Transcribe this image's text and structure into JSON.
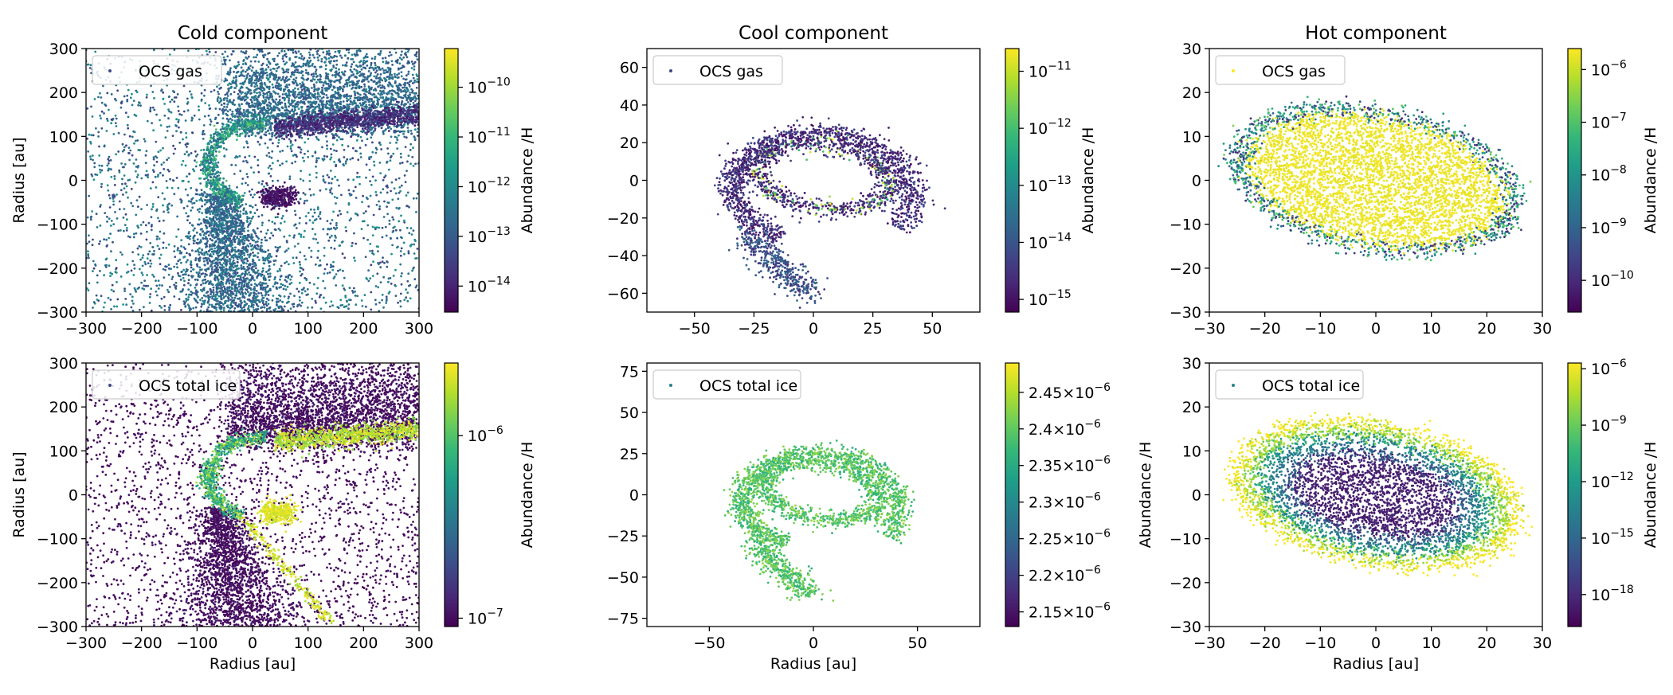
{
  "figure_description_free": true,
  "chart_data": [
    {
      "id": "cold_gas",
      "type": "scatter",
      "title": "Cold component",
      "legend": "OCS gas",
      "xlabel": "",
      "ylabel": "Radius [au]",
      "xlim": [
        -300,
        300
      ],
      "ylim": [
        -300,
        300
      ],
      "xticks": [
        -300,
        -200,
        -100,
        0,
        100,
        200,
        300
      ],
      "yticks": [
        -300,
        -200,
        -100,
        0,
        100,
        200,
        300
      ],
      "xtick_labels": [
        "−300",
        "−200",
        "−100",
        "0",
        "100",
        "200",
        "300"
      ],
      "ytick_labels": [
        "−300",
        "−200",
        "−100",
        "0",
        "100",
        "200",
        "300"
      ],
      "colorbar": {
        "label": "Abundance /H",
        "scale": "log",
        "range": [
          3e-15,
          6e-10
        ],
        "ticks": [
          {
            "value": 1e-10,
            "base": "10",
            "exp": "−10"
          },
          {
            "value": 1e-11,
            "base": "10",
            "exp": "−11"
          },
          {
            "value": 1e-12,
            "base": "10",
            "exp": "−12"
          },
          {
            "value": 1e-13,
            "base": "10",
            "exp": "−13"
          },
          {
            "value": 1e-14,
            "base": "10",
            "exp": "−14"
          }
        ]
      },
      "structure": "cold",
      "dominant_value": "low"
    },
    {
      "id": "cool_gas",
      "type": "scatter",
      "title": "Cool component",
      "legend": "OCS gas",
      "xlabel": "",
      "ylabel": "",
      "xlim": [
        -70,
        70
      ],
      "ylim": [
        -70,
        70
      ],
      "xticks": [
        -50,
        -25,
        0,
        25,
        50
      ],
      "yticks": [
        -60,
        -40,
        -20,
        0,
        20,
        40,
        60
      ],
      "xtick_labels": [
        "−50",
        "−25",
        "0",
        "25",
        "50"
      ],
      "ytick_labels": [
        "−60",
        "−40",
        "−20",
        "0",
        "20",
        "40",
        "60"
      ],
      "colorbar": {
        "label": "Abundance /H",
        "scale": "log",
        "range": [
          6e-16,
          2.5e-11
        ],
        "ticks": [
          {
            "value": 1e-11,
            "base": "10",
            "exp": "−11"
          },
          {
            "value": 1e-12,
            "base": "10",
            "exp": "−12"
          },
          {
            "value": 1e-13,
            "base": "10",
            "exp": "−13"
          },
          {
            "value": 1e-14,
            "base": "10",
            "exp": "−14"
          },
          {
            "value": 1e-15,
            "base": "10",
            "exp": "−15"
          }
        ]
      },
      "structure": "spiral",
      "dominant_value": "low"
    },
    {
      "id": "hot_gas",
      "type": "scatter",
      "title": "Hot component",
      "legend": "OCS gas",
      "xlabel": "",
      "ylabel": "",
      "xlim": [
        -30,
        30
      ],
      "ylim": [
        -30,
        30
      ],
      "xticks": [
        -30,
        -20,
        -10,
        0,
        10,
        20,
        30
      ],
      "yticks": [
        -30,
        -20,
        -10,
        0,
        10,
        20,
        30
      ],
      "xtick_labels": [
        "−30",
        "−20",
        "−10",
        "0",
        "10",
        "20",
        "30"
      ],
      "ytick_labels": [
        "−30",
        "−20",
        "−10",
        "0",
        "10",
        "20",
        "30"
      ],
      "colorbar": {
        "label": "Abundance /H",
        "scale": "log",
        "range": [
          2.5e-11,
          2.5e-06
        ],
        "ticks": [
          {
            "value": 1e-06,
            "base": "10",
            "exp": "−6"
          },
          {
            "value": 1e-07,
            "base": "10",
            "exp": "−7"
          },
          {
            "value": 1e-08,
            "base": "10",
            "exp": "−8"
          },
          {
            "value": 1e-09,
            "base": "10",
            "exp": "−9"
          },
          {
            "value": 1e-10,
            "base": "10",
            "exp": "−10"
          }
        ]
      },
      "structure": "disk",
      "dominant_value": "center_high"
    },
    {
      "id": "cold_ice",
      "type": "scatter",
      "title": "",
      "legend": "OCS total ice",
      "xlabel": "Radius [au]",
      "ylabel": "Radius [au]",
      "xlim": [
        -300,
        300
      ],
      "ylim": [
        -300,
        300
      ],
      "xticks": [
        -300,
        -200,
        -100,
        0,
        100,
        200,
        300
      ],
      "yticks": [
        -300,
        -200,
        -100,
        0,
        100,
        200,
        300
      ],
      "xtick_labels": [
        "−300",
        "−200",
        "−100",
        "0",
        "100",
        "200",
        "300"
      ],
      "ytick_labels": [
        "−300",
        "−200",
        "−100",
        "0",
        "100",
        "200",
        "300"
      ],
      "colorbar": {
        "label": "Abundance /H",
        "scale": "log",
        "range": [
          9e-08,
          2.5e-06
        ],
        "ticks": [
          {
            "value": 1e-06,
            "base": "10",
            "exp": "−6"
          },
          {
            "value": 1e-07,
            "base": "10",
            "exp": "−7"
          }
        ]
      },
      "structure": "cold",
      "dominant_value": "ice_low"
    },
    {
      "id": "cool_ice",
      "type": "scatter",
      "title": "",
      "legend": "OCS total ice",
      "xlabel": "Radius [au]",
      "ylabel": "",
      "xlim": [
        -80,
        80
      ],
      "ylim": [
        -80,
        80
      ],
      "xticks": [
        -50,
        0,
        50
      ],
      "yticks": [
        -75,
        -50,
        -25,
        0,
        25,
        50,
        75
      ],
      "xtick_labels": [
        "−50",
        "0",
        "50"
      ],
      "ytick_labels": [
        "−75",
        "−50",
        "−25",
        "0",
        "25",
        "50",
        "75"
      ],
      "colorbar": {
        "label": "Abundance /H",
        "scale": "linear",
        "range": [
          2.13e-06,
          2.49e-06
        ],
        "ticks": [
          {
            "value": 2.45e-06,
            "mant": "2.45",
            "base": "10",
            "exp": "−6"
          },
          {
            "value": 2.4e-06,
            "mant": "2.4",
            "base": "10",
            "exp": "−6"
          },
          {
            "value": 2.35e-06,
            "mant": "2.35",
            "base": "10",
            "exp": "−6"
          },
          {
            "value": 2.3e-06,
            "mant": "2.3",
            "base": "10",
            "exp": "−6"
          },
          {
            "value": 2.25e-06,
            "mant": "2.25",
            "base": "10",
            "exp": "−6"
          },
          {
            "value": 2.2e-06,
            "mant": "2.2",
            "base": "10",
            "exp": "−6"
          },
          {
            "value": 2.15e-06,
            "mant": "2.15",
            "base": "10",
            "exp": "−6"
          }
        ]
      },
      "structure": "spiral",
      "dominant_value": "mid"
    },
    {
      "id": "hot_ice",
      "type": "scatter",
      "title": "",
      "legend": "OCS total ice",
      "xlabel": "Radius [au]",
      "ylabel": "",
      "xlim": [
        -30,
        30
      ],
      "ylim": [
        -30,
        30
      ],
      "xticks": [
        -30,
        -20,
        -10,
        0,
        10,
        20,
        30
      ],
      "yticks": [
        -30,
        -20,
        -10,
        0,
        10,
        20,
        30
      ],
      "xtick_labels": [
        "−30",
        "−20",
        "−10",
        "0",
        "10",
        "20",
        "30"
      ],
      "ytick_labels": [
        "−30",
        "−20",
        "−10",
        "0",
        "10",
        "20",
        "30"
      ],
      "colorbar": {
        "label": "Abundance /H",
        "scale": "log",
        "range": [
          2e-20,
          2e-06
        ],
        "ticks": [
          {
            "value": 1e-06,
            "base": "10",
            "exp": "−6"
          },
          {
            "value": 1e-09,
            "base": "10",
            "exp": "−9"
          },
          {
            "value": 1e-12,
            "base": "10",
            "exp": "−12"
          },
          {
            "value": 1e-15,
            "base": "10",
            "exp": "−15"
          },
          {
            "value": 1e-18,
            "base": "10",
            "exp": "−18"
          }
        ]
      },
      "structure": "disk",
      "dominant_value": "center_low"
    }
  ],
  "colormap": {
    "name": "viridis",
    "stops": [
      "#440154",
      "#482878",
      "#3e4989",
      "#31688e",
      "#26828e",
      "#1f9e89",
      "#35b779",
      "#6ece58",
      "#b5de2b",
      "#fde725"
    ]
  }
}
